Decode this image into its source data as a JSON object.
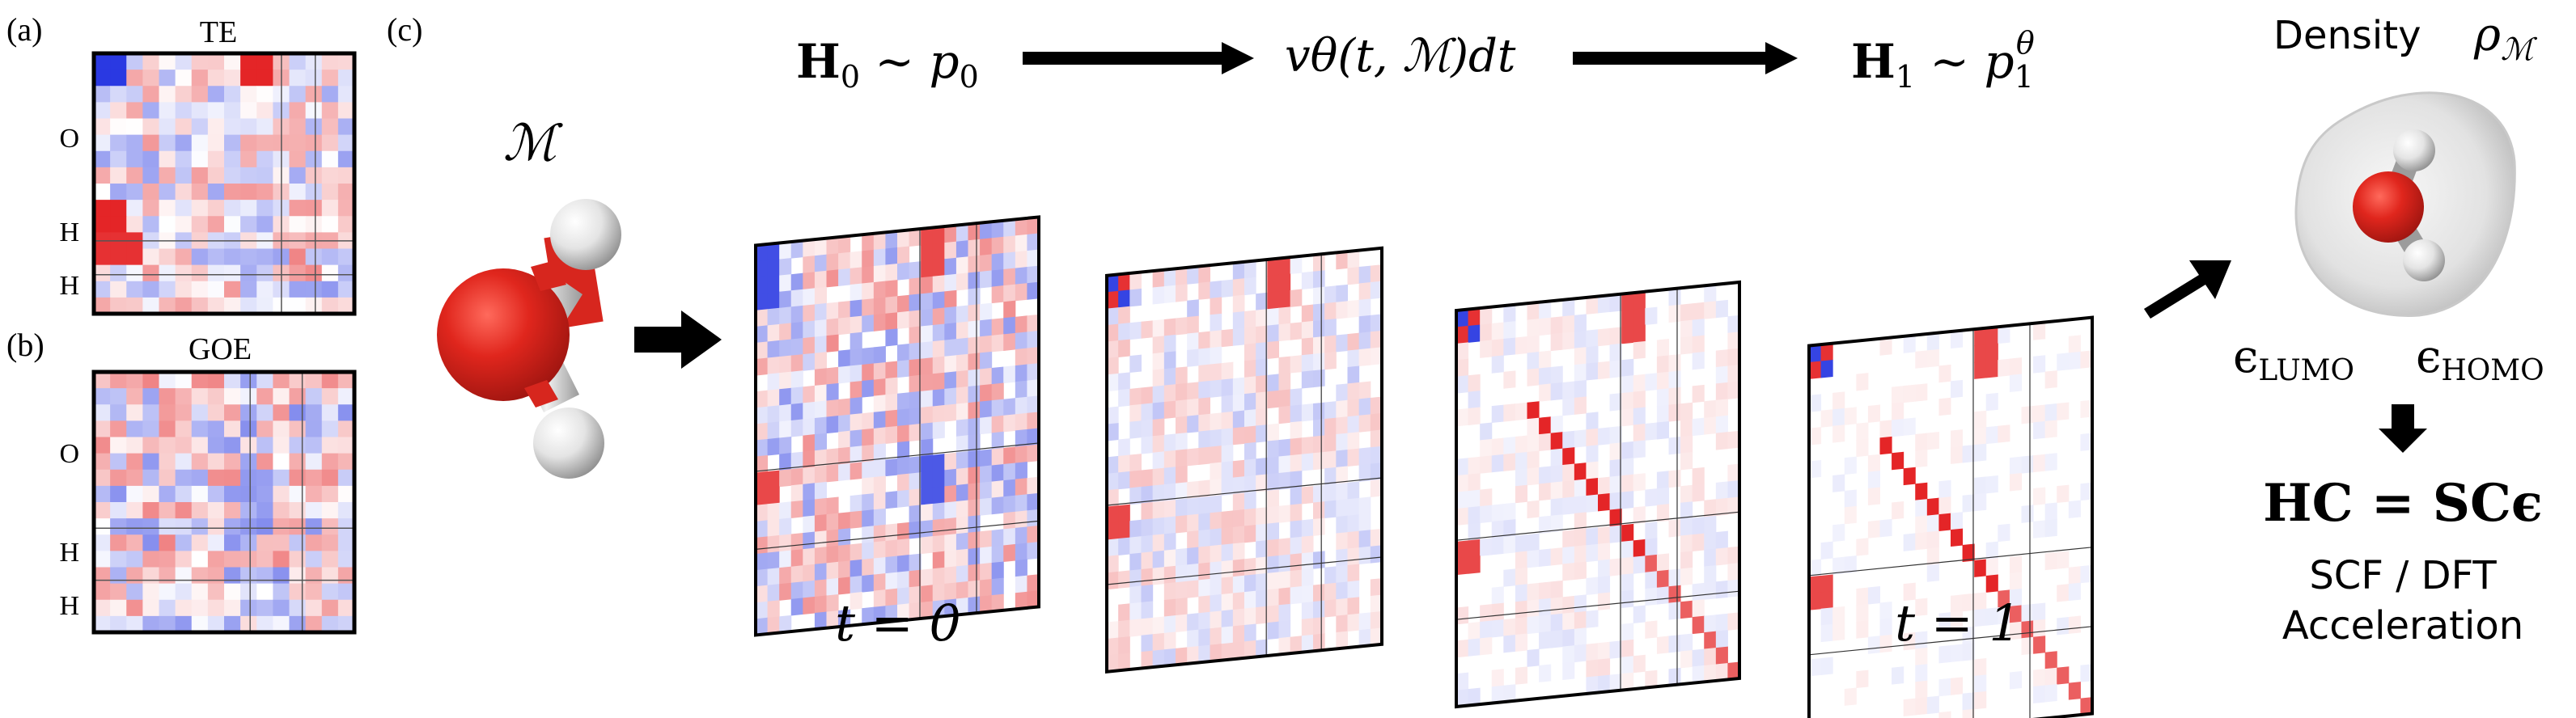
{
  "panels": {
    "a": {
      "tag": "(a)",
      "title": "TE",
      "rows": [
        "O",
        "H",
        "H"
      ]
    },
    "b": {
      "tag": "(b)",
      "title": "GOE",
      "rows": [
        "O",
        "H",
        "H"
      ]
    },
    "c": {
      "tag": "(c)"
    }
  },
  "molecule_label": "ℳ",
  "top_labels": {
    "h0": {
      "main": "H",
      "sub": "0",
      "rel": " ∼ ",
      "dist": "p",
      "dist_sub": "0"
    },
    "flow": "vθ(t, ℳ)dt",
    "h1": {
      "main": "H",
      "sub": "1",
      "rel": " ∼ ",
      "dist": "p",
      "dist_sub": "1",
      "dist_sup": "θ"
    }
  },
  "time_labels": {
    "start": "t = 0",
    "end": "t = 1"
  },
  "right": {
    "density_label": "Density",
    "rho": {
      "main": "ρ",
      "sub": "ℳ"
    },
    "lumo": {
      "main": "ϵ",
      "sub": "LUMO"
    },
    "homo": {
      "main": "ϵ",
      "sub": "HOMO"
    },
    "equation": "HC = SCϵ",
    "scf_line1": "SCF / DFT",
    "scf_line2": "Acceleration"
  },
  "colors": {
    "red": "#e31a1c",
    "blue": "#1f2fe0",
    "oxygen": "#d7261e",
    "hydrogen": "#e6e6e6",
    "arrow": "#000000"
  }
}
